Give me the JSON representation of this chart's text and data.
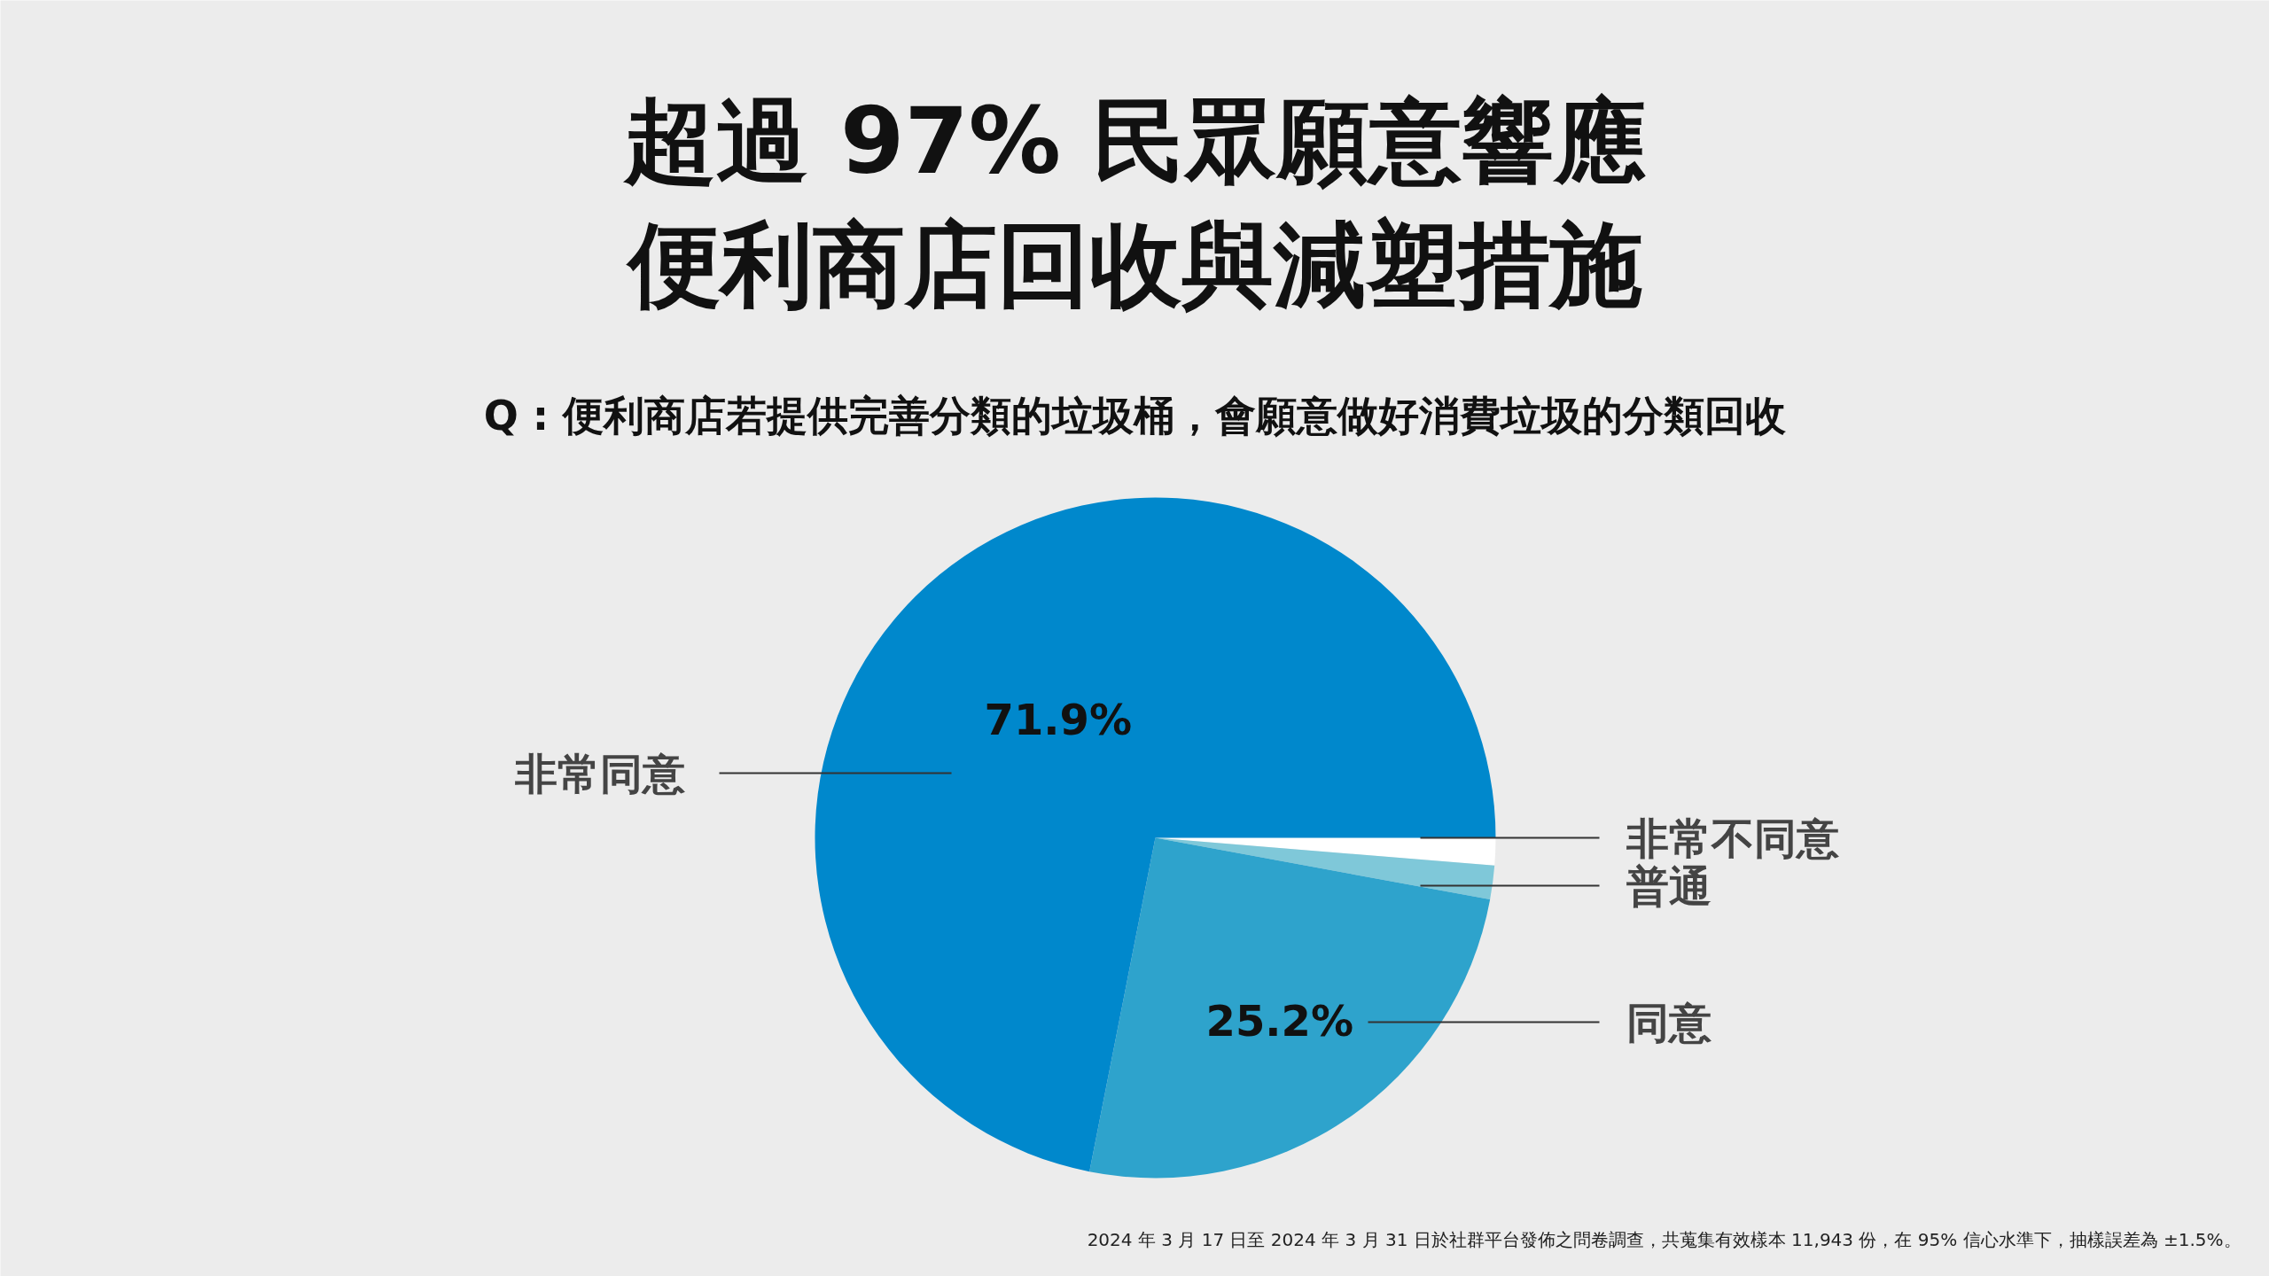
{
  "chart_data": {
    "type": "pie",
    "title": "超過 97% 民眾願意響應便利商店回收與減塑措施",
    "subtitle": "Q : 便利商店若提供完善分類的垃圾桶，會願意做好消費垃圾的分類回收",
    "categories": [
      "非常不同意",
      "普通",
      "同意",
      "非常同意"
    ],
    "values": [
      1.3,
      1.6,
      25.2,
      71.9
    ],
    "colors": [
      "#ffffff",
      "#7fc8d9",
      "#2ea3cc",
      "#0088cc"
    ],
    "value_labels": [
      null,
      null,
      "25.2%",
      "71.9%"
    ],
    "annotations": [
      "2024 年 3 月 17 日至 2024 年 3 月 31 日於社群平台發佈之問卷調查，共蒐集有效樣本 11,943 份，在 95% 信心水準下，抽樣誤差為 ±1.5%。"
    ]
  }
}
